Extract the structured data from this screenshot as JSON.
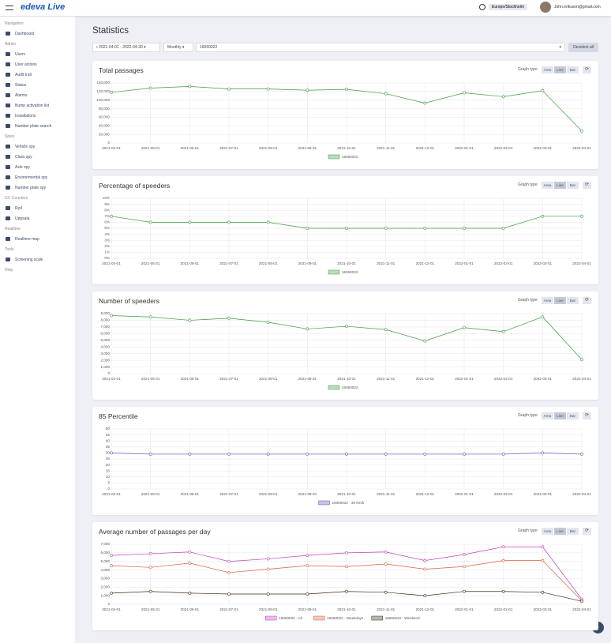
{
  "header": {
    "logo": "edeva Live",
    "timezone": "Europe/Stockholm",
    "user": "John.eriksson@gmail.com"
  },
  "sidebar": {
    "sections": [
      {
        "title": "Navigation",
        "items": [
          "Dashboard"
        ]
      },
      {
        "title": "Admin",
        "items": [
          "Users",
          "User actions",
          "Audit trail",
          "Status",
          "Alarms",
          "Bump activation list",
          "Installations",
          "Number plate search"
        ]
      },
      {
        "title": "Spies",
        "items": [
          "Vehicle spy",
          "Class spy",
          "Axle spy",
          "Environmental spy",
          "Number plate spy"
        ]
      },
      {
        "title": "GC Counters",
        "items": [
          "Ryd",
          "Uppsala"
        ]
      },
      {
        "title": "Realtime",
        "items": [
          "Realtime map"
        ]
      },
      {
        "title": "Tools",
        "items": [
          "Screening scale"
        ]
      },
      {
        "title": "Help"
      }
    ]
  },
  "page": {
    "title": "Statistics",
    "date_range": "2021-04-01 - 2022-04-30",
    "interval": "Monthly",
    "device": "16060022",
    "deselect": "Deselect all"
  },
  "panels": [
    {
      "graph_type_label": "Graph type",
      "graph_types": [
        "Area",
        "Line",
        "Bar"
      ],
      "selected": 1,
      "chart_data": {
        "type": "line",
        "title": "Total passages",
        "grid": true,
        "categories": [
          "2021-04-01",
          "2021-05-01",
          "2021-06-01",
          "2021-07-01",
          "2021-08-01",
          "2021-09-01",
          "2021-10-01",
          "2021-11-01",
          "2021-12-01",
          "2022-01-01",
          "2022-02-01",
          "2022-03-01",
          "2022-04-01"
        ],
        "series": [
          {
            "name": "16060022",
            "color": "#3c9a3c",
            "values": [
              118000,
              128000,
              132000,
              126000,
              126000,
              123000,
              125000,
              115000,
              93000,
              117000,
              108000,
              122000,
              28000
            ]
          }
        ],
        "ylim": [
          0,
          140000
        ],
        "yticks": [
          0,
          {
            "value": 20000,
            "label": "20,000"
          },
          {
            "value": 40000,
            "label": "40,000"
          },
          {
            "value": 60000,
            "label": "60,000"
          },
          {
            "value": 80000,
            "label": "80,000"
          },
          {
            "value": 100000,
            "label": "100,000"
          },
          {
            "value": 120000,
            "label": "120,000"
          },
          {
            "value": 140000,
            "label": "140,000"
          }
        ]
      }
    },
    {
      "graph_type_label": "Graph type",
      "graph_types": [
        "Area",
        "Line",
        "Bar"
      ],
      "selected": 1,
      "chart_data": {
        "type": "line",
        "title": "Percentage of speeders",
        "grid": true,
        "categories": [
          "2021-04-01",
          "2021-05-31",
          "2021-06-01",
          "2021-07-01",
          "2021-08-01",
          "2021-09-01",
          "2021-10-01",
          "2021-11-01",
          "2021-12-01",
          "2022-01-01",
          "2022-02-01",
          "2022-03-01",
          "2022-04-01"
        ],
        "series": [
          {
            "name": "16060022",
            "color": "#3c9a3c",
            "values": [
              7,
              6,
              6,
              6,
              6,
              5,
              5,
              5,
              5,
              5,
              5,
              7,
              7
            ]
          }
        ],
        "ylim": [
          0,
          10
        ],
        "yticks": [
          {
            "value": 0,
            "label": "0%"
          },
          {
            "value": 1,
            "label": "1%"
          },
          {
            "value": 2,
            "label": "2%"
          },
          {
            "value": 3,
            "label": "3%"
          },
          {
            "value": 4,
            "label": "4%"
          },
          {
            "value": 5,
            "label": "5%"
          },
          {
            "value": 6,
            "label": "6%"
          },
          {
            "value": 7,
            "label": "7%"
          },
          {
            "value": 8,
            "label": "8%"
          },
          {
            "value": 9,
            "label": "9%"
          },
          {
            "value": 10,
            "label": "10%"
          }
        ]
      }
    },
    {
      "graph_type_label": "Graph type",
      "graph_types": [
        "Area",
        "Line",
        "Bar"
      ],
      "selected": 1,
      "chart_data": {
        "type": "line",
        "title": "Number of speeders",
        "grid": true,
        "categories": [
          "2021-04-01",
          "2021-05-31",
          "2021-06-01",
          "2021-07-01",
          "2021-08-01",
          "2021-09-01",
          "2021-10-01",
          "2021-11-01",
          "2021-12-01",
          "2022-01-01",
          "2022-02-01",
          "2022-03-01",
          "2022-04-01"
        ],
        "series": [
          {
            "name": "16060022",
            "color": "#3c9a3c",
            "values": [
              8700,
              8500,
              8000,
              8300,
              7700,
              6700,
              7100,
              6600,
              4900,
              6900,
              6300,
              8500,
              2100
            ]
          }
        ],
        "ylim": [
          0,
          9000
        ],
        "yticks": [
          0,
          {
            "value": 1000,
            "label": "1,000"
          },
          {
            "value": 2000,
            "label": "2,000"
          },
          {
            "value": 3000,
            "label": "3,000"
          },
          {
            "value": 4000,
            "label": "4,000"
          },
          {
            "value": 5000,
            "label": "5,000"
          },
          {
            "value": 6000,
            "label": "6,000"
          },
          {
            "value": 7000,
            "label": "7,000"
          },
          {
            "value": 8000,
            "label": "8,000"
          },
          {
            "value": 9000,
            "label": "9,000"
          }
        ]
      }
    },
    {
      "graph_type_label": "Graph type",
      "graph_types": [
        "Area",
        "Line",
        "Bar"
      ],
      "selected": 1,
      "chart_data": {
        "type": "line",
        "title": "85 Percentile",
        "grid": true,
        "categories": [
          "2021-03-01",
          "2021-05-01",
          "2021-06-01",
          "2021-07-01",
          "2021-08-01",
          "2021-09-04",
          "2021-10-01",
          "2021-11-01",
          "2021-12-01",
          "2022-01-01",
          "2022-02-01",
          "2022-03-01",
          "2022-04-01"
        ],
        "series": [
          {
            "name": "16060022 - 30 km/h",
            "color": "#5a5ab8",
            "values": [
              30,
              29,
              29,
              29,
              29,
              29,
              29,
              29,
              29,
              29,
              29,
              30,
              29
            ]
          }
        ],
        "ylim": [
          0,
          50
        ],
        "yticks": [
          0,
          5,
          10,
          15,
          20,
          25,
          30,
          35,
          40,
          45,
          50
        ]
      }
    },
    {
      "graph_type_label": "Graph type",
      "graph_types": [
        "Area",
        "Line",
        "Bar"
      ],
      "selected": 1,
      "chart_data": {
        "type": "line",
        "title": "Average number of passages per day",
        "grid": true,
        "categories": [
          "2021-04-01",
          "2021-05-31",
          "2021-06-01",
          "2021-07-01",
          "2021-08-01",
          "2021-09-01",
          "2021-10-01",
          "2021-11-01",
          "2021-12-01",
          "2022-01-01",
          "2022-02-01",
          "2022-03-01",
          "2022-04-01"
        ],
        "series": [
          {
            "name": "16060022 - All",
            "color": "#c040c0",
            "values": [
              5700,
              5900,
              6100,
              5000,
              5300,
              5700,
              6000,
              6100,
              5100,
              5800,
              6700,
              6700,
              600
            ]
          },
          {
            "name": "16060022 - Weekdays",
            "color": "#d9603b",
            "values": [
              4500,
              4300,
              4800,
              3700,
              4100,
              4500,
              4400,
              4700,
              4100,
              4400,
              5100,
              5100,
              400
            ]
          },
          {
            "name": "16060022 - Weekend",
            "color": "#3a2a1a",
            "values": [
              1300,
              1500,
              1300,
              1200,
              1200,
              1200,
              1500,
              1400,
              1000,
              1500,
              1500,
              1400,
              350
            ]
          }
        ],
        "ylim": [
          0,
          7000
        ],
        "yticks": [
          0,
          {
            "value": 1000,
            "label": "1,000"
          },
          {
            "value": 2000,
            "label": "2,000"
          },
          {
            "value": 3000,
            "label": "3,000"
          },
          {
            "value": 4000,
            "label": "4,000"
          },
          {
            "value": 5000,
            "label": "5,000"
          },
          {
            "value": 6000,
            "label": "6,000"
          },
          {
            "value": 7000,
            "label": "7,000"
          }
        ]
      }
    }
  ]
}
